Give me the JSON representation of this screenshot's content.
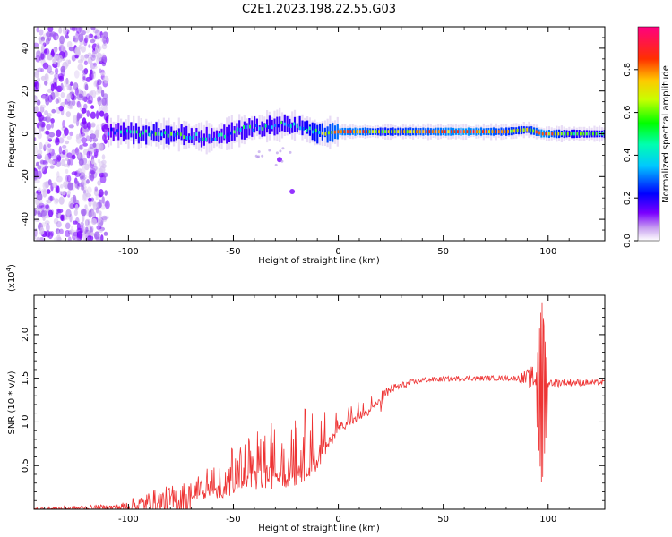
{
  "title": "C2E1.2023.198.22.55.G03",
  "chart_data": [
    {
      "type": "heatmap",
      "xlabel": "Height of straight line (km)",
      "ylabel": "Frequency (Hz)",
      "xlim": [
        -145,
        127
      ],
      "ylim": [
        -50,
        50
      ],
      "xticks": [
        -100,
        -50,
        0,
        50,
        100
      ],
      "yticks": [
        -40,
        -20,
        0,
        20,
        40
      ],
      "colorbar": {
        "label": "Normalized spectral amplitude",
        "range": [
          0,
          1
        ],
        "ticks": [
          0.0,
          0.2,
          0.4,
          0.6,
          0.8
        ],
        "colors": [
          "#d8c4f0",
          "#7a00ff",
          "#0000ff",
          "#00ffff",
          "#00ff00",
          "#ffff00",
          "#ff8000",
          "#ff0000",
          "#ff0080"
        ]
      },
      "noise_region": {
        "x": [
          -145,
          -110
        ],
        "freq": [
          -50,
          50
        ]
      },
      "ridge": [
        {
          "x": -110,
          "freq": 1,
          "amp": 0.35
        },
        {
          "x": -100,
          "freq": 1,
          "amp": 0.5
        },
        {
          "x": -90,
          "freq": 0,
          "amp": 0.55
        },
        {
          "x": -80,
          "freq": 0,
          "amp": 0.55
        },
        {
          "x": -70,
          "freq": -1,
          "amp": 0.5
        },
        {
          "x": -60,
          "freq": -2,
          "amp": 0.45
        },
        {
          "x": -50,
          "freq": 1,
          "amp": 0.5
        },
        {
          "x": -40,
          "freq": 3,
          "amp": 0.5
        },
        {
          "x": -30,
          "freq": 4,
          "amp": 0.5
        },
        {
          "x": -20,
          "freq": 4,
          "amp": 0.55
        },
        {
          "x": -10,
          "freq": 0,
          "amp": 0.7
        },
        {
          "x": 0,
          "freq": 1,
          "amp": 0.85
        },
        {
          "x": 10,
          "freq": 1,
          "amp": 0.85
        },
        {
          "x": 20,
          "freq": 1,
          "amp": 0.7
        },
        {
          "x": 40,
          "freq": 1,
          "amp": 0.8
        },
        {
          "x": 60,
          "freq": 1,
          "amp": 0.9
        },
        {
          "x": 80,
          "freq": 1,
          "amp": 0.75
        },
        {
          "x": 90,
          "freq": 2,
          "amp": 0.7
        },
        {
          "x": 97,
          "freq": 0,
          "amp": 0.9
        },
        {
          "x": 110,
          "freq": 0,
          "amp": 0.6
        },
        {
          "x": 127,
          "freq": 0,
          "amp": 0.6
        }
      ],
      "trail": [
        {
          "x": -28,
          "freq": -12
        },
        {
          "x": -22,
          "freq": -27
        }
      ]
    },
    {
      "type": "line",
      "xlabel": "Height of straight line (km)",
      "ylabel": "SNR (10 * v/v)",
      "y_multiplier": "(x10",
      "y_exponent": "4",
      "y_multiplier_close": ")",
      "xlim": [
        -145,
        127
      ],
      "ylim": [
        0,
        2.45
      ],
      "xticks": [
        -100,
        -50,
        0,
        50,
        100
      ],
      "yticks": [
        0.5,
        1.0,
        1.5,
        2.0
      ],
      "color": "#ee3333",
      "envelope": [
        {
          "x": -145,
          "base": 0.0,
          "amp": 0.02
        },
        {
          "x": -105,
          "base": 0.02,
          "amp": 0.04
        },
        {
          "x": -90,
          "base": 0.06,
          "amp": 0.15
        },
        {
          "x": -70,
          "base": 0.12,
          "amp": 0.22
        },
        {
          "x": -55,
          "base": 0.18,
          "amp": 0.45
        },
        {
          "x": -35,
          "base": 0.3,
          "amp": 0.7
        },
        {
          "x": -20,
          "base": 0.35,
          "amp": 0.85
        },
        {
          "x": -10,
          "base": 0.5,
          "amp": 0.6
        },
        {
          "x": 0,
          "base": 0.9,
          "amp": 0.25
        },
        {
          "x": 15,
          "base": 1.1,
          "amp": 0.22
        },
        {
          "x": 25,
          "base": 1.38,
          "amp": 0.05
        },
        {
          "x": 40,
          "base": 1.48,
          "amp": 0.03
        },
        {
          "x": 60,
          "base": 1.5,
          "amp": 0.03
        },
        {
          "x": 85,
          "base": 1.5,
          "amp": 0.03
        },
        {
          "x": 93,
          "base": 1.5,
          "amp": 0.15
        },
        {
          "x": 100,
          "base": 1.45,
          "amp": 0.05
        },
        {
          "x": 127,
          "base": 1.45,
          "amp": 0.03
        }
      ],
      "spike": {
        "x": 97,
        "max": 2.4,
        "min": 0.25
      }
    }
  ]
}
